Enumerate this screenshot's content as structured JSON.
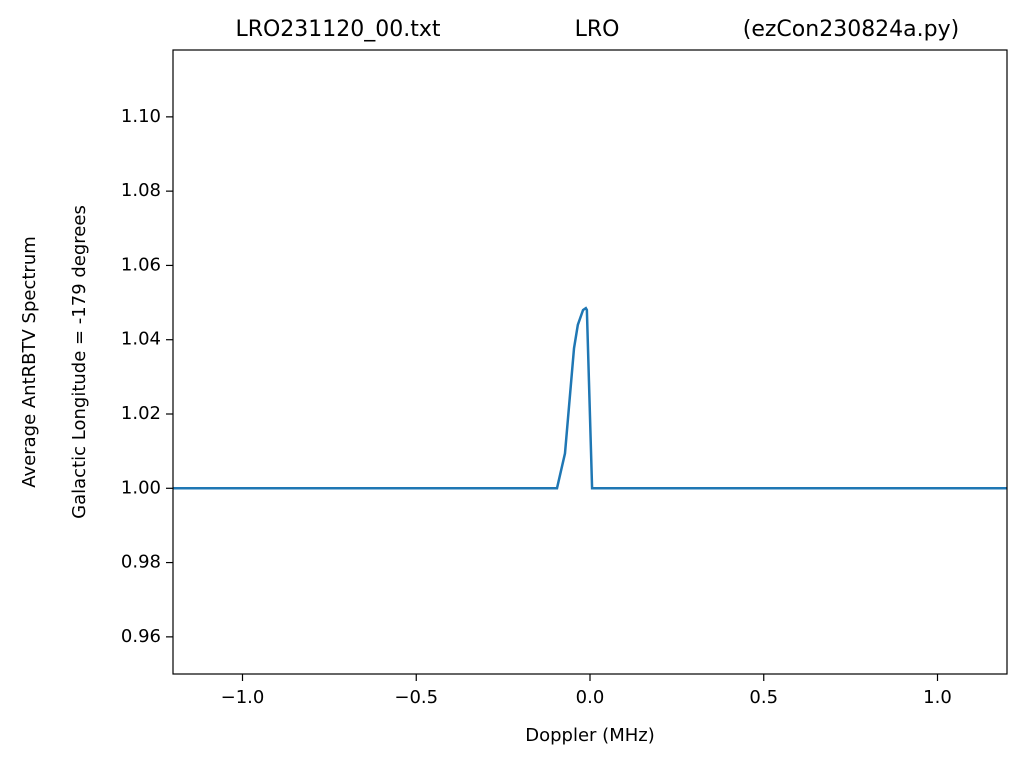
{
  "chart_data": {
    "type": "line",
    "title_parts": [
      "LRO231120_00.txt",
      "LRO",
      "(ezCon230824a.py)"
    ],
    "y_label": [
      "Average AntRBTV Spectrum",
      "Galactic Longitude = -179 degrees"
    ],
    "x_label": "Doppler (MHz)",
    "x": [
      -1.2,
      -0.095,
      -0.072,
      -0.046,
      -0.035,
      -0.02,
      -0.012,
      -0.009,
      0.006,
      1.2
    ],
    "series": [
      {
        "name": "spectrum",
        "color": "#1f77b4",
        "values": [
          1.0,
          1.0,
          1.0094,
          1.0377,
          1.044,
          1.048,
          1.0485,
          1.048,
          1.0,
          1.0
        ]
      }
    ],
    "xlim": [
      -1.2,
      1.2
    ],
    "ylim": [
      0.95,
      1.118
    ],
    "xticks": [
      {
        "value": -1.0,
        "label": "−1.0"
      },
      {
        "value": -0.5,
        "label": "−0.5"
      },
      {
        "value": 0.0,
        "label": "0.0"
      },
      0.5,
      {
        "value": 1.0,
        "label": "1.0"
      }
    ],
    "yticks": [
      0.96,
      0.98,
      {
        "value": 1.0,
        "label": "1.00"
      },
      1.02,
      1.04,
      1.06,
      1.08,
      {
        "value": 1.1,
        "label": "1.10"
      }
    ],
    "grid": false
  }
}
